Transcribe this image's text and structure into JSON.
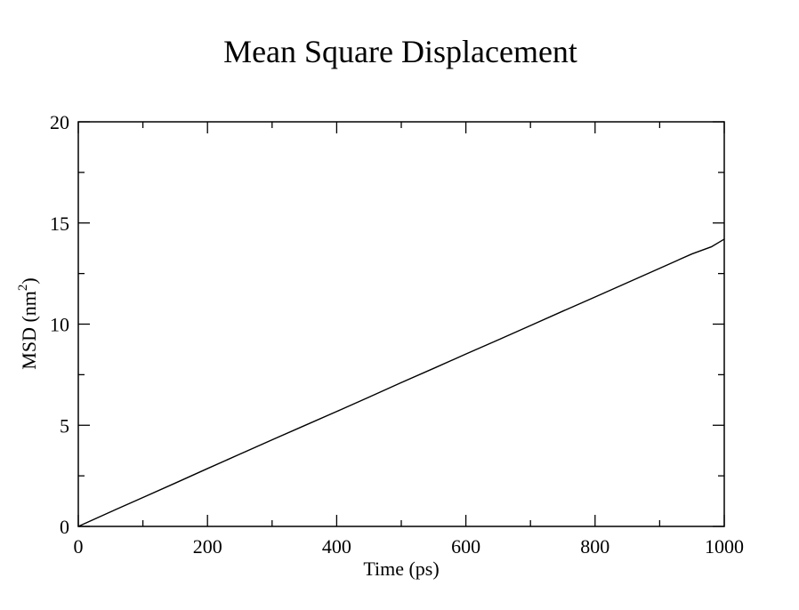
{
  "chart_data": {
    "type": "line",
    "title": "Mean Square Displacement",
    "xlabel": "Time (ps)",
    "ylabel_main": "MSD (nm",
    "ylabel_sup": "2",
    "ylabel_end": ")",
    "xlim": [
      0,
      1000
    ],
    "ylim": [
      0,
      20
    ],
    "x_major_ticks": [
      0,
      200,
      400,
      600,
      800,
      1000
    ],
    "x_minor_ticks": [
      100,
      300,
      500,
      700,
      900
    ],
    "y_major_ticks": [
      0,
      5,
      10,
      15,
      20
    ],
    "y_minor_ticks": [
      2.5,
      7.5,
      12.5,
      17.5
    ],
    "x_tick_labels": [
      "0",
      "200",
      "400",
      "600",
      "800",
      "1000"
    ],
    "y_tick_labels": [
      "0",
      "5",
      "10",
      "15",
      "20"
    ],
    "grid": false,
    "legend": "none",
    "line_color": "#000000",
    "series": [
      {
        "x": [
          0,
          50,
          100,
          150,
          200,
          250,
          300,
          350,
          400,
          450,
          500,
          550,
          600,
          650,
          700,
          750,
          800,
          850,
          900,
          950,
          980,
          1000
        ],
        "y": [
          0,
          0.72,
          1.43,
          2.14,
          2.86,
          3.57,
          4.28,
          4.98,
          5.68,
          6.39,
          7.11,
          7.81,
          8.52,
          9.22,
          9.93,
          10.64,
          11.34,
          12.05,
          12.76,
          13.47,
          13.82,
          14.2
        ]
      }
    ]
  }
}
